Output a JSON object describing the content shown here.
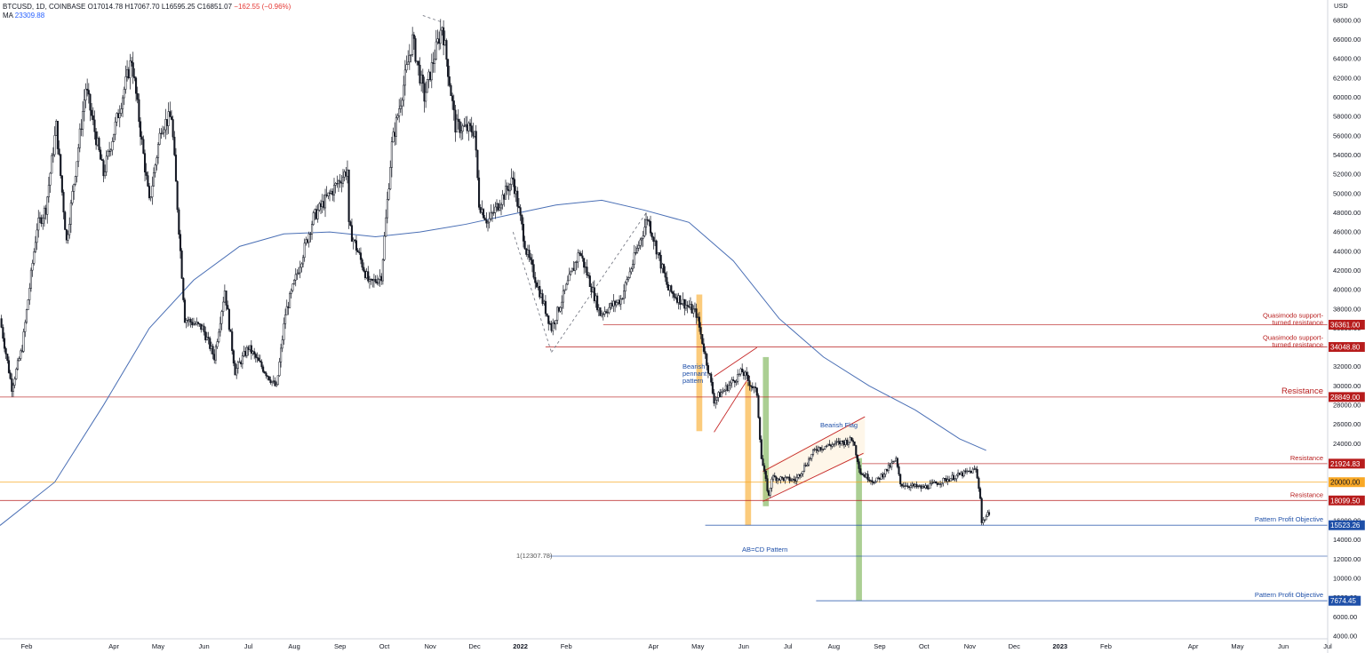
{
  "header": {
    "symbol": "BTCUSD, 1D, COINBASE",
    "open": "O17014.78",
    "high": "H17067.70",
    "low": "L16595.25",
    "close": "C16851.07",
    "change": "−162.55 (−0.96%)",
    "ma_label": "MA",
    "ma_value": "23309.88"
  },
  "axis_currency": "USD",
  "colors": {
    "candle": "#131722",
    "ma_line": "#4a6fb5",
    "resistance": "#b71c1c",
    "level_orange": "#f9a825",
    "pattern_blue": "#1e4fa8",
    "gray": "#787b86"
  },
  "chart_data": {
    "type": "line",
    "symbol": "BTCUSD",
    "interval": "1D",
    "y_axis": {
      "unit": "USD",
      "scale": "linear",
      "range": [
        4000,
        69000
      ],
      "ticks": [
        4000,
        6000,
        8000,
        10000,
        12000,
        14000,
        16000,
        18000,
        20000,
        22000,
        24000,
        26000,
        28000,
        30000,
        32000,
        34000,
        36000,
        38000,
        40000,
        42000,
        44000,
        46000,
        48000,
        50000,
        52000,
        54000,
        56000,
        58000,
        60000,
        62000,
        64000,
        66000,
        68000
      ]
    },
    "x_axis": {
      "range": [
        "2021-01-14",
        "2023-07-01"
      ],
      "ticks": [
        {
          "date": "2021-02-01",
          "label": "Feb"
        },
        {
          "date": "2021-04-01",
          "label": "Apr"
        },
        {
          "date": "2021-05-01",
          "label": "May"
        },
        {
          "date": "2021-06-01",
          "label": "Jun"
        },
        {
          "date": "2021-07-01",
          "label": "Jul"
        },
        {
          "date": "2021-08-01",
          "label": "Aug"
        },
        {
          "date": "2021-09-01",
          "label": "Sep"
        },
        {
          "date": "2021-10-01",
          "label": "Oct"
        },
        {
          "date": "2021-11-01",
          "label": "Nov"
        },
        {
          "date": "2021-12-01",
          "label": "Dec"
        },
        {
          "date": "2022-01-01",
          "label": "2022"
        },
        {
          "date": "2022-02-01",
          "label": "Feb"
        },
        {
          "date": "2022-04-01",
          "label": "Apr"
        },
        {
          "date": "2022-05-01",
          "label": "May"
        },
        {
          "date": "2022-06-01",
          "label": "Jun"
        },
        {
          "date": "2022-07-01",
          "label": "Jul"
        },
        {
          "date": "2022-08-01",
          "label": "Aug"
        },
        {
          "date": "2022-09-01",
          "label": "Sep"
        },
        {
          "date": "2022-10-01",
          "label": "Oct"
        },
        {
          "date": "2022-11-01",
          "label": "Nov"
        },
        {
          "date": "2022-12-01",
          "label": "Dec"
        },
        {
          "date": "2023-01-01",
          "label": "2023"
        },
        {
          "date": "2023-02-01",
          "label": "Feb"
        },
        {
          "date": "2023-04-01",
          "label": "Apr"
        },
        {
          "date": "2023-05-01",
          "label": "May"
        },
        {
          "date": "2023-06-01",
          "label": "Jun"
        },
        {
          "date": "2023-07-01",
          "label": "Jul"
        }
      ]
    },
    "grid": false,
    "series": [
      {
        "kind": "close",
        "points": [
          [
            "2021-01-14",
            37000
          ],
          [
            "2021-01-22",
            29800
          ],
          [
            "2021-01-29",
            34000
          ],
          [
            "2021-02-08",
            46500
          ],
          [
            "2021-02-14",
            48500
          ],
          [
            "2021-02-21",
            57000
          ],
          [
            "2021-02-28",
            45000
          ],
          [
            "2021-03-13",
            61000
          ],
          [
            "2021-03-25",
            52000
          ],
          [
            "2021-04-13",
            64000
          ],
          [
            "2021-04-25",
            49000
          ],
          [
            "2021-05-03",
            57000
          ],
          [
            "2021-05-10",
            58000
          ],
          [
            "2021-05-19",
            37000
          ],
          [
            "2021-05-31",
            36000
          ],
          [
            "2021-06-08",
            33000
          ],
          [
            "2021-06-15",
            40000
          ],
          [
            "2021-06-22",
            31500
          ],
          [
            "2021-07-01",
            34000
          ],
          [
            "2021-07-20",
            29800
          ],
          [
            "2021-07-26",
            37500
          ],
          [
            "2021-08-14",
            47500
          ],
          [
            "2021-08-23",
            49500
          ],
          [
            "2021-09-06",
            52500
          ],
          [
            "2021-09-07",
            46500
          ],
          [
            "2021-09-21",
            40500
          ],
          [
            "2021-09-29",
            41500
          ],
          [
            "2021-10-06",
            55000
          ],
          [
            "2021-10-20",
            66000
          ],
          [
            "2021-10-28",
            60000
          ],
          [
            "2021-11-09",
            67500
          ],
          [
            "2021-11-18",
            57000
          ],
          [
            "2021-12-01",
            56500
          ],
          [
            "2021-12-04",
            49000
          ],
          [
            "2021-12-10",
            47000
          ],
          [
            "2021-12-27",
            51500
          ],
          [
            "2022-01-05",
            44000
          ],
          [
            "2022-01-22",
            36000
          ],
          [
            "2022-02-10",
            44000
          ],
          [
            "2022-02-24",
            37500
          ],
          [
            "2022-03-10",
            39000
          ],
          [
            "2022-03-28",
            47500
          ],
          [
            "2022-04-11",
            40000
          ],
          [
            "2022-04-30",
            37500
          ],
          [
            "2022-05-09",
            31000
          ],
          [
            "2022-05-12",
            28500
          ],
          [
            "2022-05-31",
            31500
          ],
          [
            "2022-06-10",
            29200
          ],
          [
            "2022-06-13",
            22500
          ],
          [
            "2022-06-18",
            18500
          ],
          [
            "2022-06-20",
            20500
          ],
          [
            "2022-07-06",
            20200
          ],
          [
            "2022-07-20",
            23500
          ],
          [
            "2022-07-28",
            23800
          ],
          [
            "2022-08-14",
            24400
          ],
          [
            "2022-08-19",
            21000
          ],
          [
            "2022-08-29",
            20000
          ],
          [
            "2022-09-12",
            22300
          ],
          [
            "2022-09-15",
            19800
          ],
          [
            "2022-09-30",
            19400
          ],
          [
            "2022-10-26",
            20800
          ],
          [
            "2022-11-05",
            21300
          ],
          [
            "2022-11-08",
            18500
          ],
          [
            "2022-11-09",
            15800
          ],
          [
            "2022-11-14",
            16851
          ]
        ]
      },
      {
        "kind": "moving_average",
        "name": "MA",
        "points": [
          [
            "2021-01-14",
            15500
          ],
          [
            "2021-02-20",
            20000
          ],
          [
            "2021-03-25",
            28000
          ],
          [
            "2021-04-25",
            36000
          ],
          [
            "2021-05-25",
            41000
          ],
          [
            "2021-06-25",
            44500
          ],
          [
            "2021-07-25",
            45800
          ],
          [
            "2021-08-25",
            46000
          ],
          [
            "2021-09-25",
            45500
          ],
          [
            "2021-10-25",
            46000
          ],
          [
            "2021-11-25",
            46800
          ],
          [
            "2021-12-25",
            47800
          ],
          [
            "2022-01-25",
            48800
          ],
          [
            "2022-02-25",
            49300
          ],
          [
            "2022-03-25",
            48300
          ],
          [
            "2022-04-25",
            47000
          ],
          [
            "2022-05-25",
            43000
          ],
          [
            "2022-06-25",
            37000
          ],
          [
            "2022-07-25",
            33000
          ],
          [
            "2022-08-25",
            30000
          ],
          [
            "2022-09-25",
            27500
          ],
          [
            "2022-10-25",
            24500
          ],
          [
            "2022-11-12",
            23300
          ]
        ]
      }
    ],
    "levels": [
      {
        "price": 36361.0,
        "label": "36361.00",
        "note": "Quasimodo support-\nturned resistance",
        "color": "#b71c1c"
      },
      {
        "price": 34048.8,
        "label": "34048.80",
        "note": "Quasimodo support-\nturned resistance",
        "color": "#b71c1c"
      },
      {
        "price": 28849.0,
        "label": "28849.00",
        "note": "Resistance",
        "color": "#b71c1c"
      },
      {
        "price": 21924.83,
        "label": "21924.83",
        "note": "Resistance",
        "color": "#b71c1c"
      },
      {
        "price": 20000.0,
        "label": "20000.00",
        "note": "",
        "color": "#f9a825"
      },
      {
        "price": 18099.5,
        "label": "18099.50",
        "note": "Resistance",
        "color": "#b71c1c"
      },
      {
        "price": 15523.26,
        "label": "15523.26",
        "note": "Pattern Profit Objective",
        "color": "#1e4fa8"
      },
      {
        "price": 7674.45,
        "label": "7674.45",
        "note": "Pattern Profit Objective",
        "color": "#1e4fa8"
      }
    ],
    "annotations": [
      {
        "text": "Bearish pennant pattern",
        "kind": "pattern"
      },
      {
        "text": "Bearish Flag",
        "kind": "pattern"
      },
      {
        "text": "AB=CD Pattern",
        "kind": "pattern",
        "price": 12307.78,
        "value_label": "1(12307.78)"
      }
    ]
  }
}
